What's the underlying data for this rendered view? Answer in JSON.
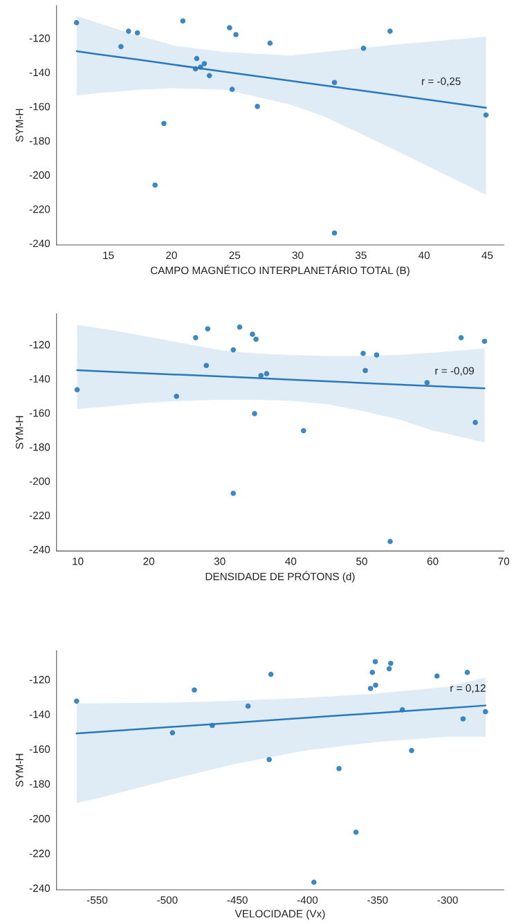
{
  "chart_data": [
    {
      "type": "scatter",
      "xlabel": "CAMPO MAGNÉTICO INTERPLANETÁRIO TOTAL (B)",
      "ylabel": "SYM-H",
      "annotations": [
        "r = -0,25"
      ],
      "xlim": [
        10.9,
        46.3
      ],
      "ylim": [
        -241,
        -101
      ],
      "xticks": [
        15,
        20,
        25,
        30,
        35,
        40,
        45
      ],
      "yticks": [
        -240,
        -220,
        -200,
        -180,
        -160,
        -140,
        -120
      ],
      "series": [
        {
          "color": "#3b88c3",
          "marker": "circle",
          "x": [
            12.48,
            16.0,
            16.6,
            17.3,
            18.7,
            19.4,
            20.9,
            21.9,
            22.0,
            22.3,
            22.6,
            23.0,
            24.6,
            24.8,
            25.1,
            26.8,
            27.8,
            32.9,
            32.9,
            35.2,
            37.3,
            44.9
          ],
          "values": [
            -111,
            -125,
            -116,
            -117,
            -206,
            -170,
            -110,
            -138,
            -132,
            -137,
            -135,
            -142,
            -114,
            -150,
            -118,
            -160,
            -123,
            -146,
            -234,
            -126,
            -116,
            -165
          ]
        },
        {
          "type": "line",
          "color": "#2878be",
          "x": [
            12.5,
            14.1,
            17.4,
            20.2,
            24.3,
            29.4,
            32.0,
            34.5,
            38.3,
            44.9
          ],
          "values": [
            -127.7,
            -129.4,
            -132.7,
            -135.6,
            -139.8,
            -145.0,
            -147.6,
            -150.2,
            -154.0,
            -160.8
          ],
          "upper": [
            -107.2,
            -111,
            -118.7,
            -124.4,
            -128.2,
            -130.2,
            -128.2,
            -126.3,
            -123.5,
            -119.2
          ],
          "lower": [
            -153.7,
            -152.2,
            -150.3,
            -149.3,
            -150.3,
            -158.9,
            -165.6,
            -174.2,
            -187.7,
            -211.6
          ]
        }
      ]
    },
    {
      "type": "scatter",
      "xlabel": "DENSIDADE DE PRÓTONS (d)",
      "ylabel": "SYM-H",
      "annotations": [
        "r = -0,09"
      ],
      "xlim": [
        7,
        70
      ],
      "ylim": [
        -241,
        -102
      ],
      "xticks": [
        10,
        20,
        30,
        40,
        50,
        60,
        70
      ],
      "yticks": [
        -240,
        -220,
        -200,
        -180,
        -160,
        -140,
        -120
      ],
      "series": [
        {
          "color": "#3b88c3",
          "marker": "circle",
          "x": [
            9.9,
            23.9,
            26.6,
            28.1,
            28.3,
            31.9,
            31.9,
            32.8,
            34.6,
            35.1,
            34.9,
            35.8,
            36.6,
            41.8,
            50.2,
            50.5,
            52.1,
            54.0,
            59.2,
            64.0,
            66.0,
            67.3
          ],
          "values": [
            -146.5,
            -150.3,
            -116,
            -132.3,
            -110.8,
            -123.1,
            -207.2,
            -109.8,
            -114,
            -116.9,
            -160.5,
            -138.2,
            -137.1,
            -170.5,
            -125.2,
            -135.2,
            -126.1,
            -235.4,
            -142.3,
            -116,
            -165.7,
            -118.1
          ]
        },
        {
          "type": "line",
          "color": "#2878be",
          "x": [
            9.9,
            15,
            20,
            25,
            30,
            35,
            40,
            45,
            50,
            55,
            60,
            67.3
          ],
          "values": [
            -135.0,
            -136.0,
            -136.9,
            -137.8,
            -138.7,
            -139.6,
            -140.6,
            -141.5,
            -142.5,
            -143.4,
            -144.3,
            -145.7
          ],
          "upper": [
            -108.5,
            -111.7,
            -115.6,
            -119.4,
            -123.3,
            -125.2,
            -126.1,
            -126.7,
            -126.7,
            -126.1,
            -124.8,
            -122.3
          ],
          "lower": [
            -157.8,
            -155.9,
            -154.0,
            -153.0,
            -152.4,
            -152.4,
            -153.0,
            -154.9,
            -158.8,
            -163.6,
            -170.3,
            -177.4
          ]
        }
      ]
    },
    {
      "type": "scatter",
      "xlabel": "VELOCIDADE (Vx)",
      "ylabel": "SYM-H",
      "annotations": [
        "r = 0,12"
      ],
      "xlim": [
        -579,
        -260
      ],
      "ylim": [
        -241,
        -103.5
      ],
      "xticks": [
        -550,
        -500,
        -450,
        -400,
        -350,
        -300
      ],
      "yticks": [
        -240,
        -220,
        -200,
        -180,
        -160,
        -140,
        -120
      ],
      "series": [
        {
          "color": "#3b88c3",
          "marker": "circle",
          "x": [
            -564.7,
            -496.3,
            -480.7,
            -467.9,
            -442.4,
            -426.1,
            -427.3,
            -395.4,
            -377.5,
            -365.4,
            -355.0,
            -353.7,
            -351.6,
            -351.4,
            -341.7,
            -340.6,
            -332.3,
            -325.7,
            -307.6,
            -289.0,
            -286.0,
            -273.0
          ],
          "values": [
            -132.5,
            -150.7,
            -126.1,
            -146.5,
            -135.4,
            -117.1,
            -166.1,
            -236.7,
            -171.3,
            -207.9,
            -125.2,
            -116.0,
            -109.8,
            -123.3,
            -113.9,
            -110.8,
            -137.5,
            -160.9,
            -118.1,
            -142.7,
            -116.0,
            -138.6
          ]
        },
        {
          "type": "line",
          "color": "#2878be",
          "x": [
            -564.7,
            -550,
            -500,
            -450,
            -400,
            -350,
            -300,
            -273
          ],
          "values": [
            -151.1,
            -150.3,
            -147.5,
            -144.8,
            -142.0,
            -139.3,
            -136.5,
            -135.0
          ],
          "upper": [
            -133.8,
            -133.8,
            -133.4,
            -132.3,
            -130.6,
            -128.1,
            -124.2,
            -118.8
          ],
          "lower": [
            -191.0,
            -188.5,
            -178.0,
            -168.4,
            -160.7,
            -155.9,
            -153.0,
            -153.0
          ]
        }
      ]
    }
  ]
}
